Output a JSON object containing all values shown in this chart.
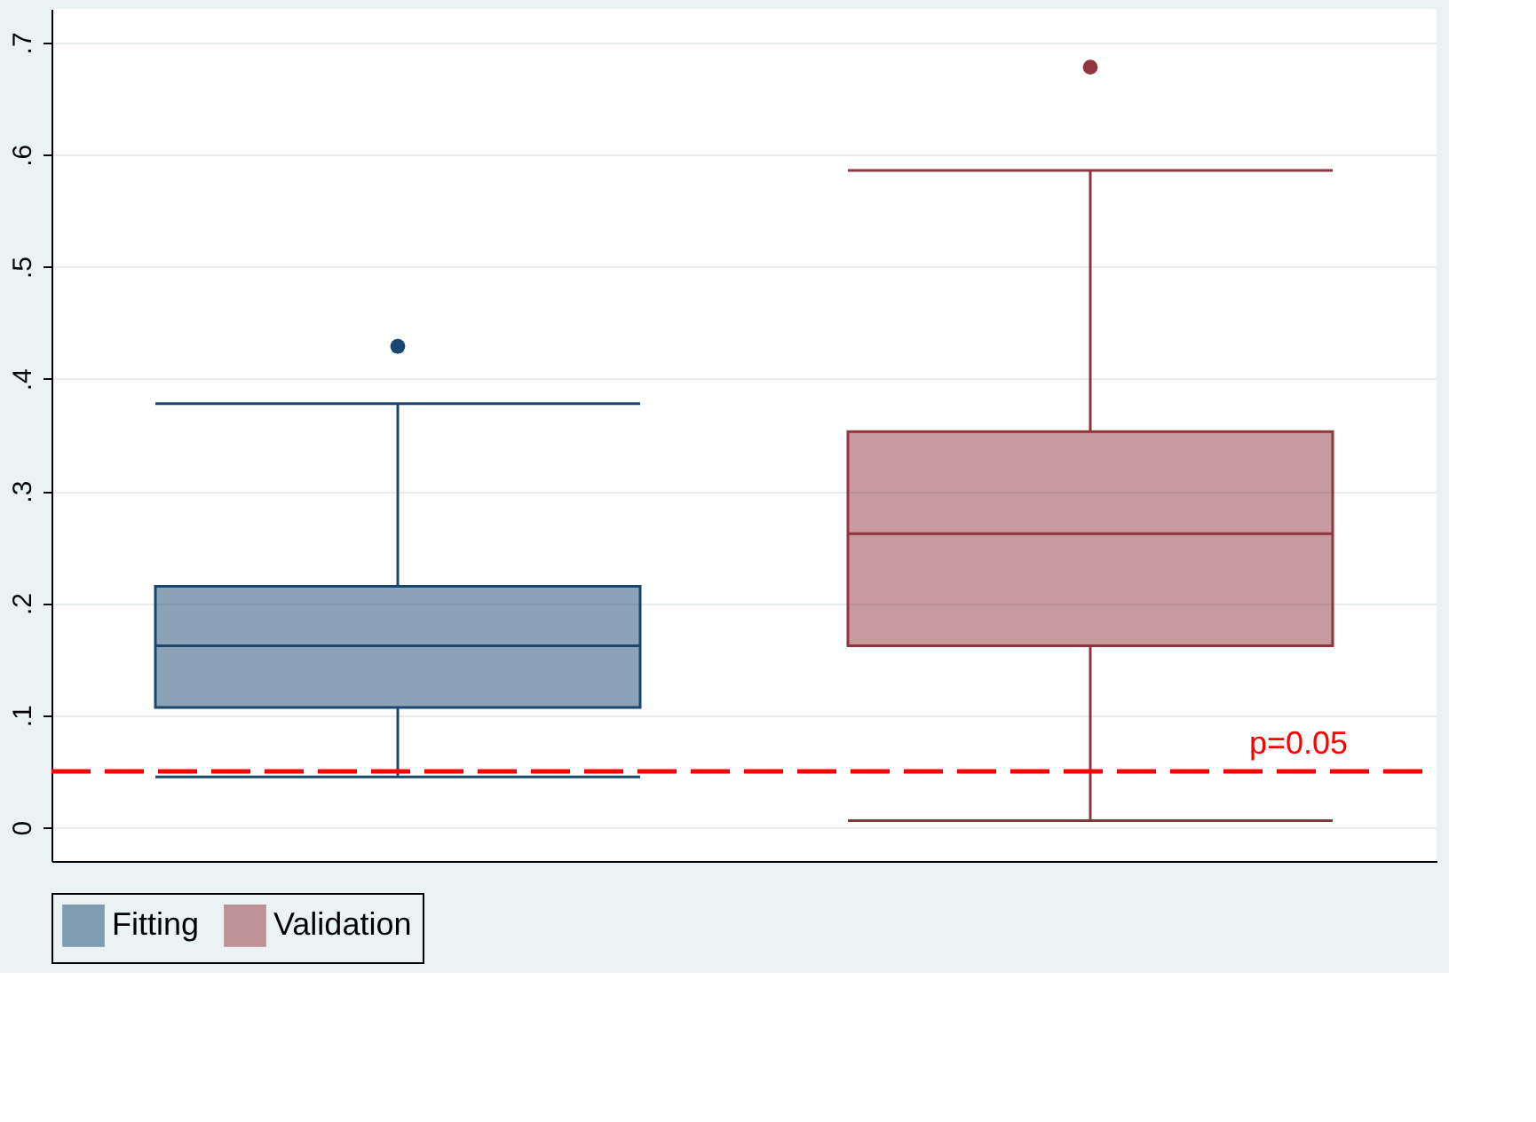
{
  "chart_data": {
    "type": "box",
    "categories": [
      null
    ],
    "series": [
      {
        "name": "Fitting",
        "color": "#1a476f",
        "boxes": [
          {
            "low": 0.045,
            "q1": 0.107,
            "median": 0.162,
            "q3": 0.215,
            "high": 0.378,
            "outliers": [
              0.429
            ]
          }
        ]
      },
      {
        "name": "Validation",
        "color": "#90353b",
        "boxes": [
          {
            "low": 0.006,
            "q1": 0.162,
            "median": 0.262,
            "q3": 0.353,
            "high": 0.586,
            "outliers": [
              0.678
            ]
          }
        ]
      }
    ],
    "ylim": [
      -0.03,
      0.73
    ],
    "yticks": [
      0,
      {
        "value": 0.1,
        "label": ".1"
      },
      {
        "value": 0.2,
        "label": ".2"
      },
      {
        "value": 0.3,
        "label": ".3"
      },
      {
        "value": 0.4,
        "label": ".4"
      },
      {
        "value": 0.5,
        "label": ".5"
      },
      {
        "value": 0.6,
        "label": ".6"
      },
      {
        "value": 0.7,
        "label": ".7"
      }
    ],
    "ref_lines": [
      {
        "axis": "y",
        "value": 0.05,
        "label": "p=0.05",
        "color": "#ff0000",
        "line_style": "dashed"
      }
    ],
    "grid": "y",
    "legend": "bottom",
    "tick_labels": "y",
    "marker": "circle"
  }
}
